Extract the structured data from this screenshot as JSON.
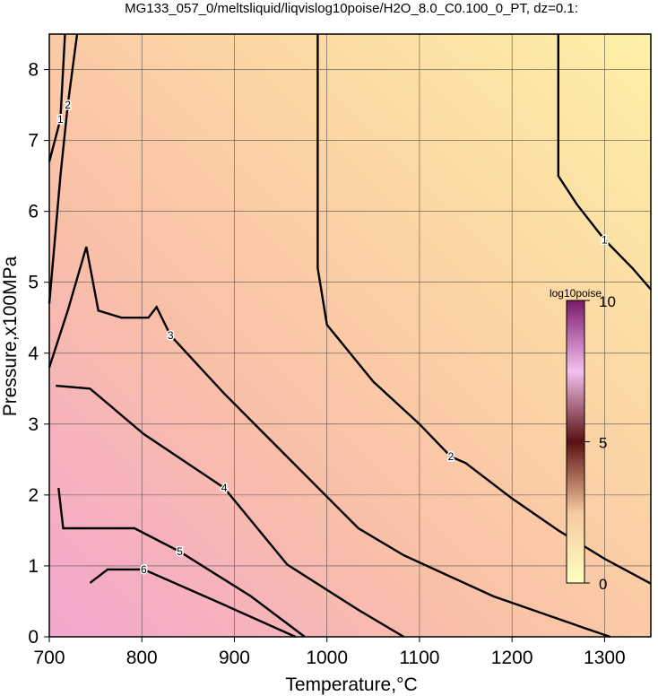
{
  "chart_data": {
    "type": "contour",
    "title": "MG133_057_0/meltsliquid/liqvislog10poise/H2O_8.0_C0.100_0_PT, dz=0.1:",
    "x_label": "Temperature,°C",
    "y_label": "Pressure,x100MPa",
    "xlim": [
      700,
      1350
    ],
    "ylim": [
      0,
      8.5
    ],
    "xticks": [
      700,
      800,
      900,
      1000,
      1100,
      1200,
      1300
    ],
    "yticks": [
      0,
      1,
      2,
      3,
      4,
      5,
      6,
      7,
      8
    ],
    "grid": true,
    "contours": [
      {
        "level": 1,
        "x": [
          1250,
          1250,
          1270,
          1300,
          1330,
          1350
        ],
        "y": [
          8.5,
          6.5,
          6.1,
          5.6,
          5.2,
          4.9
        ]
      },
      {
        "level": 2,
        "x": [
          990,
          990,
          1000,
          1050,
          1100,
          1134,
          1150,
          1200,
          1250,
          1300,
          1350
        ],
        "y": [
          8.5,
          5.2,
          4.4,
          3.6,
          3.0,
          2.54,
          2.45,
          1.95,
          1.5,
          1.1,
          0.75
        ]
      },
      {
        "level": 3,
        "x": [
          700,
          720,
          740,
          753,
          778,
          807,
          816,
          831,
          889,
          937,
          1034,
          1083,
          1180,
          1277,
          1306
        ],
        "y": [
          3.8,
          4.6,
          5.5,
          4.6,
          4.5,
          4.5,
          4.65,
          4.25,
          3.43,
          2.8,
          1.53,
          1.15,
          0.57,
          0.13,
          0
        ]
      },
      {
        "level": 4,
        "x": [
          707,
          744,
          802,
          889,
          957,
          1034,
          1083
        ],
        "y": [
          3.54,
          3.5,
          2.86,
          2.1,
          1.02,
          0.38,
          0
        ]
      },
      {
        "level": 5,
        "x": [
          710,
          715,
          792,
          841,
          918,
          976
        ],
        "y": [
          2.1,
          1.53,
          1.53,
          1.2,
          0.57,
          0
        ]
      },
      {
        "level": 6,
        "x": [
          744,
          763,
          802,
          889,
          966
        ],
        "y": [
          0.76,
          0.95,
          0.95,
          0.45,
          0
        ]
      },
      {
        "level": 2,
        "x": [
          700,
          712,
          720,
          730
        ],
        "y": [
          4.7,
          6.5,
          7.5,
          8.5
        ]
      },
      {
        "level": 1,
        "x": [
          700,
          712,
          717
        ],
        "y": [
          6.7,
          7.3,
          8.5
        ]
      }
    ],
    "colorbar": {
      "label": "log10poise",
      "lim": [
        0,
        10
      ],
      "ticks": [
        0,
        5,
        10
      ]
    }
  }
}
